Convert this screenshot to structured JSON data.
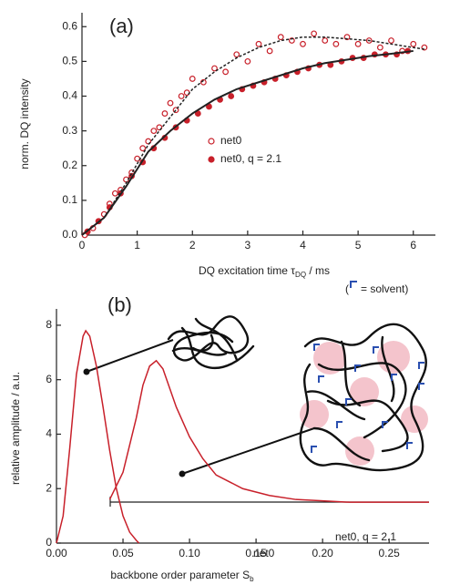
{
  "chart_data": [
    {
      "type": "scatter",
      "title": "(a)",
      "x_label": [
        "DQ excitation time τ",
        "DQ",
        " / ms"
      ],
      "y_label": "norm. DQ intensity",
      "xlim": [
        0,
        6.4
      ],
      "ylim": [
        0,
        0.64
      ],
      "xticks": [
        0,
        1,
        2,
        3,
        4,
        5,
        6
      ],
      "yticks": [
        {
          "value": 0,
          "label": "0.0"
        },
        0.1,
        0.2,
        0.3,
        0.4,
        0.5,
        0.6
      ],
      "legend": "center",
      "series": [
        {
          "name": "net0",
          "color": "#c8202a",
          "marker": "open",
          "x": [
            0.05,
            0.1,
            0.2,
            0.3,
            0.4,
            0.5,
            0.6,
            0.7,
            0.8,
            0.9,
            1.0,
            1.1,
            1.2,
            1.3,
            1.4,
            1.5,
            1.6,
            1.7,
            1.8,
            1.9,
            2.0,
            2.2,
            2.4,
            2.6,
            2.8,
            3.0,
            3.2,
            3.4,
            3.6,
            3.8,
            4.0,
            4.2,
            4.4,
            4.6,
            4.8,
            5.0,
            5.2,
            5.4,
            5.6,
            5.8,
            6.0,
            6.2
          ],
          "values": [
            0.0,
            0.01,
            0.02,
            0.04,
            0.06,
            0.09,
            0.12,
            0.13,
            0.16,
            0.18,
            0.22,
            0.25,
            0.27,
            0.3,
            0.31,
            0.35,
            0.38,
            0.36,
            0.4,
            0.41,
            0.45,
            0.44,
            0.48,
            0.47,
            0.52,
            0.5,
            0.55,
            0.53,
            0.57,
            0.56,
            0.55,
            0.58,
            0.56,
            0.55,
            0.57,
            0.55,
            0.56,
            0.54,
            0.56,
            0.53,
            0.55,
            0.54
          ]
        },
        {
          "name": "net0, q = 2.1",
          "color": "#c8202a",
          "marker": "filled",
          "x": [
            0.1,
            0.3,
            0.5,
            0.7,
            0.9,
            1.1,
            1.3,
            1.5,
            1.7,
            1.9,
            2.1,
            2.3,
            2.5,
            2.7,
            2.9,
            3.1,
            3.3,
            3.5,
            3.7,
            3.9,
            4.1,
            4.3,
            4.5,
            4.7,
            4.9,
            5.1,
            5.3,
            5.5,
            5.7,
            5.9
          ],
          "values": [
            0.01,
            0.04,
            0.08,
            0.12,
            0.17,
            0.21,
            0.25,
            0.28,
            0.31,
            0.33,
            0.35,
            0.37,
            0.39,
            0.4,
            0.42,
            0.43,
            0.44,
            0.45,
            0.46,
            0.47,
            0.48,
            0.49,
            0.49,
            0.5,
            0.51,
            0.51,
            0.52,
            0.52,
            0.52,
            0.53
          ]
        },
        {
          "color": "#222222",
          "marker": "line",
          "style": "dashed",
          "x": [
            0,
            0.4,
            0.8,
            1.2,
            1.6,
            2.0,
            2.4,
            2.8,
            3.2,
            3.6,
            4.0,
            4.4,
            4.8,
            5.2,
            5.6,
            6.0,
            6.2
          ],
          "values": [
            0,
            0.05,
            0.15,
            0.26,
            0.34,
            0.42,
            0.47,
            0.51,
            0.54,
            0.56,
            0.57,
            0.57,
            0.565,
            0.56,
            0.55,
            0.54,
            0.535
          ]
        },
        {
          "color": "#222222",
          "marker": "line",
          "style": "solid",
          "x": [
            0,
            0.4,
            0.8,
            1.2,
            1.6,
            2.0,
            2.4,
            2.8,
            3.2,
            3.6,
            4.0,
            4.4,
            4.8,
            5.2,
            5.6,
            6.0
          ],
          "values": [
            0,
            0.05,
            0.14,
            0.24,
            0.3,
            0.35,
            0.39,
            0.42,
            0.44,
            0.46,
            0.48,
            0.495,
            0.505,
            0.515,
            0.522,
            0.53
          ]
        }
      ]
    },
    {
      "type": "line",
      "title": "(b)",
      "x_label": [
        "backbone order parameter S",
        "b"
      ],
      "y_label": "relative amplitude / a.u.",
      "xlim": [
        0,
        0.28
      ],
      "ylim": [
        0,
        8.6
      ],
      "xticks": [
        {
          "value": 0,
          "label": "0.00"
        },
        {
          "value": 0.05,
          "label": "0.05"
        },
        {
          "value": 0.1,
          "label": "0.10"
        },
        {
          "value": 0.15,
          "label": "0.15"
        },
        {
          "value": 0.2,
          "label": "0.20"
        },
        {
          "value": 0.25,
          "label": "0.25"
        }
      ],
      "yticks": [
        0,
        2,
        4,
        6,
        8
      ],
      "annotations": [
        "(",
        "= solvent)",
        "net0, q = 2.1",
        "net0"
      ],
      "series": [
        {
          "color": "#c8202a",
          "marker": "line",
          "style": "solid",
          "x": [
            0,
            0.005,
            0.01,
            0.015,
            0.02,
            0.022,
            0.025,
            0.03,
            0.035,
            0.04,
            0.045,
            0.05,
            0.055,
            0.06,
            0.062
          ],
          "values": [
            0,
            1.0,
            3.5,
            6.2,
            7.6,
            7.8,
            7.6,
            6.5,
            5.0,
            3.4,
            2.0,
            1.0,
            0.4,
            0.1,
            0
          ]
        },
        {
          "color": "#c8202a",
          "marker": "line",
          "style": "solid",
          "x": [
            0.04,
            0.05,
            0.06,
            0.065,
            0.07,
            0.075,
            0.08,
            0.09,
            0.1,
            0.11,
            0.12,
            0.14,
            0.16,
            0.18,
            0.2,
            0.22,
            0.28
          ],
          "values": [
            1.6,
            2.6,
            4.6,
            5.8,
            6.5,
            6.7,
            6.4,
            5.0,
            3.9,
            3.1,
            2.5,
            2.0,
            1.75,
            1.6,
            1.55,
            1.5,
            1.5
          ]
        }
      ]
    }
  ]
}
